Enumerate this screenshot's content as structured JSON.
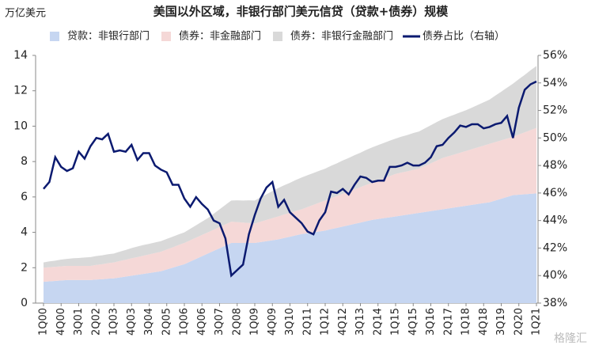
{
  "chart_data": {
    "type": "stacked-area-line",
    "title": "美国以外区域，非银行部门美元信贷（贷款+债券）规模",
    "y_axis_label": "万亿美元",
    "watermark": "格隆汇",
    "categories": [
      "1Q00",
      null,
      null,
      "4Q00",
      null,
      null,
      "3Q01",
      null,
      null,
      "2Q02",
      null,
      null,
      "1Q03",
      null,
      null,
      "4Q03",
      null,
      null,
      "3Q04",
      null,
      null,
      "2Q05",
      null,
      null,
      "1Q06",
      null,
      null,
      "4Q06",
      null,
      null,
      "3Q07",
      null,
      null,
      "2Q08",
      null,
      null,
      "1Q09",
      null,
      null,
      "4Q09",
      null,
      null,
      "3Q10",
      null,
      null,
      "2Q11",
      null,
      null,
      "1Q12",
      null,
      null,
      "4Q12",
      null,
      null,
      "3Q13",
      null,
      null,
      "2Q14",
      null,
      null,
      "1Q15",
      null,
      null,
      "4Q15",
      null,
      null,
      "3Q16",
      null,
      null,
      "2Q17",
      null,
      null,
      "1Q18",
      null,
      null,
      "4Q18",
      null,
      null,
      "3Q19",
      null,
      null,
      "2Q20",
      null,
      null,
      "1Q21"
    ],
    "series": [
      {
        "name": "贷款：非银行部门",
        "color": "#c6d6f1",
        "stack": true,
        "values": [
          1.2,
          1.23,
          1.25,
          1.28,
          1.3,
          1.3,
          1.3,
          1.3,
          1.3,
          1.33,
          1.35,
          1.38,
          1.4,
          1.45,
          1.5,
          1.55,
          1.6,
          1.65,
          1.7,
          1.75,
          1.8,
          1.9,
          2.0,
          2.1,
          2.2,
          2.35,
          2.5,
          2.65,
          2.8,
          2.95,
          3.1,
          3.25,
          3.4,
          3.4,
          3.4,
          3.4,
          3.4,
          3.45,
          3.5,
          3.55,
          3.6,
          3.68,
          3.75,
          3.83,
          3.9,
          3.95,
          4.0,
          4.05,
          4.1,
          4.18,
          4.25,
          4.33,
          4.4,
          4.48,
          4.55,
          4.63,
          4.7,
          4.75,
          4.8,
          4.85,
          4.9,
          4.95,
          5.0,
          5.05,
          5.1,
          5.15,
          5.2,
          5.25,
          5.3,
          5.35,
          5.4,
          5.45,
          5.5,
          5.55,
          5.6,
          5.65,
          5.7,
          5.8,
          5.9,
          6.0,
          6.1,
          6.13,
          6.15,
          6.18,
          6.2
        ]
      },
      {
        "name": "债券：非金融部门",
        "color": "#f5d8d7",
        "stack": true,
        "values": [
          0.8,
          0.8,
          0.8,
          0.8,
          0.8,
          0.8,
          0.8,
          0.8,
          0.8,
          0.83,
          0.85,
          0.88,
          0.9,
          0.93,
          0.95,
          0.98,
          1.0,
          1.03,
          1.05,
          1.08,
          1.1,
          1.13,
          1.15,
          1.18,
          1.2,
          1.2,
          1.2,
          1.2,
          1.2,
          1.2,
          1.2,
          1.2,
          1.2,
          1.18,
          1.15,
          1.13,
          1.1,
          1.15,
          1.2,
          1.25,
          1.3,
          1.33,
          1.35,
          1.38,
          1.4,
          1.48,
          1.55,
          1.63,
          1.7,
          1.75,
          1.8,
          1.85,
          1.9,
          1.95,
          2.0,
          2.05,
          2.1,
          2.18,
          2.25,
          2.33,
          2.4,
          2.43,
          2.45,
          2.48,
          2.5,
          2.6,
          2.7,
          2.8,
          2.9,
          2.95,
          3.0,
          3.05,
          3.1,
          3.15,
          3.2,
          3.25,
          3.3,
          3.3,
          3.3,
          3.3,
          3.3,
          3.4,
          3.5,
          3.6,
          3.7
        ]
      },
      {
        "name": "债券：非银行金融部门",
        "color": "#d9d9d9",
        "stack": true,
        "values": [
          0.3,
          0.33,
          0.35,
          0.38,
          0.4,
          0.43,
          0.45,
          0.48,
          0.5,
          0.5,
          0.5,
          0.5,
          0.5,
          0.53,
          0.55,
          0.58,
          0.6,
          0.6,
          0.6,
          0.6,
          0.6,
          0.6,
          0.6,
          0.6,
          0.6,
          0.65,
          0.7,
          0.75,
          0.8,
          0.9,
          1.0,
          1.1,
          1.2,
          1.23,
          1.25,
          1.28,
          1.3,
          1.38,
          1.45,
          1.53,
          1.6,
          1.65,
          1.7,
          1.75,
          1.8,
          1.8,
          1.8,
          1.8,
          1.8,
          1.83,
          1.85,
          1.88,
          1.9,
          1.93,
          1.95,
          1.98,
          2.0,
          2.0,
          2.0,
          2.0,
          2.0,
          2.03,
          2.05,
          2.08,
          2.1,
          2.13,
          2.15,
          2.18,
          2.2,
          2.23,
          2.25,
          2.28,
          2.3,
          2.35,
          2.4,
          2.45,
          2.5,
          2.63,
          2.75,
          2.88,
          3.0,
          3.13,
          3.25,
          3.38,
          3.5
        ]
      },
      {
        "name": "债券占比（右轴）",
        "color": "#0b1a70",
        "axis": "y2",
        "values": [
          46.3,
          46.8,
          48.6,
          47.9,
          47.6,
          47.8,
          49.0,
          48.5,
          49.4,
          50.0,
          49.9,
          50.3,
          49.0,
          49.1,
          49.0,
          49.5,
          48.4,
          48.9,
          48.9,
          48.0,
          47.7,
          47.5,
          46.6,
          46.6,
          45.6,
          45.0,
          45.7,
          45.2,
          44.8,
          44.0,
          43.8,
          42.7,
          40.0,
          40.4,
          40.8,
          43.0,
          44.4,
          45.6,
          46.4,
          46.8,
          45.0,
          45.5,
          44.6,
          44.2,
          43.8,
          43.2,
          43.0,
          44.0,
          44.6,
          46.1,
          46.0,
          46.3,
          45.9,
          46.6,
          47.2,
          47.1,
          46.8,
          46.9,
          46.9,
          47.9,
          47.9,
          48.0,
          48.2,
          48.0,
          48.0,
          48.2,
          48.6,
          49.4,
          49.5,
          50.0,
          50.4,
          50.9,
          50.8,
          51.0,
          51.0,
          50.7,
          50.8,
          51.0,
          51.1,
          51.6,
          50.0,
          52.2,
          53.5,
          53.9,
          54.1
        ]
      }
    ],
    "ylim": [
      0,
      14
    ],
    "yticks": [
      0,
      2,
      4,
      6,
      8,
      10,
      12,
      14
    ],
    "y2lim": [
      38,
      56
    ],
    "y2ticks": [
      {
        "value": 38,
        "label": "38%"
      },
      {
        "value": 40,
        "label": "40%"
      },
      {
        "value": 42,
        "label": "42%"
      },
      {
        "value": 44,
        "label": "44%"
      },
      {
        "value": 46,
        "label": "46%"
      },
      {
        "value": 48,
        "label": "48%"
      },
      {
        "value": 50,
        "label": "50%"
      },
      {
        "value": 52,
        "label": "52%"
      },
      {
        "value": 54,
        "label": "54%"
      },
      {
        "value": 56,
        "label": "56%"
      }
    ],
    "legend": "top"
  }
}
